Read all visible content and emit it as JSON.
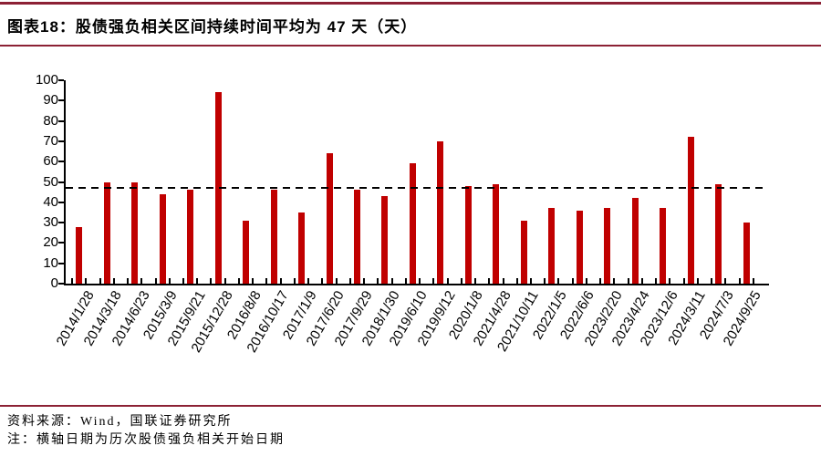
{
  "header": {
    "title": "图表18：股债强负相关区间持续时间平均为 47 天（天）"
  },
  "footer": {
    "source": "资料来源：Wind，国联证券研究所",
    "note": "注：横轴日期为历次股债强负相关开始日期"
  },
  "colors": {
    "bar": "#C00000",
    "rule": "#8C2135",
    "axis": "#000000",
    "dashed_line": "#000000"
  },
  "chart_data": {
    "type": "bar",
    "title": "图表18：股债强负相关区间持续时间平均为 47 天（天）",
    "categories": [
      "2014/1/28",
      "2014/3/18",
      "2014/6/23",
      "2015/3/9",
      "2015/9/21",
      "2015/12/28",
      "2016/8/8",
      "2016/10/17",
      "2017/1/9",
      "2017/6/20",
      "2017/9/29",
      "2018/1/30",
      "2019/6/10",
      "2019/9/12",
      "2020/1/8",
      "2021/4/28",
      "2021/10/11",
      "2022/1/5",
      "2022/6/6",
      "2023/2/20",
      "2023/4/24",
      "2023/12/6",
      "2024/3/11",
      "2024/7/3",
      "2024/9/25"
    ],
    "values": [
      28,
      50,
      50,
      44,
      46,
      94,
      31,
      46,
      35,
      64,
      46,
      43,
      59,
      70,
      48,
      49,
      31,
      37,
      36,
      37,
      42,
      37,
      72,
      49,
      30
    ],
    "xlabel": "",
    "ylabel": "",
    "ylim": [
      0,
      100
    ],
    "ytick_step": 10,
    "average_line": 47,
    "grid": false,
    "legend": "none"
  }
}
